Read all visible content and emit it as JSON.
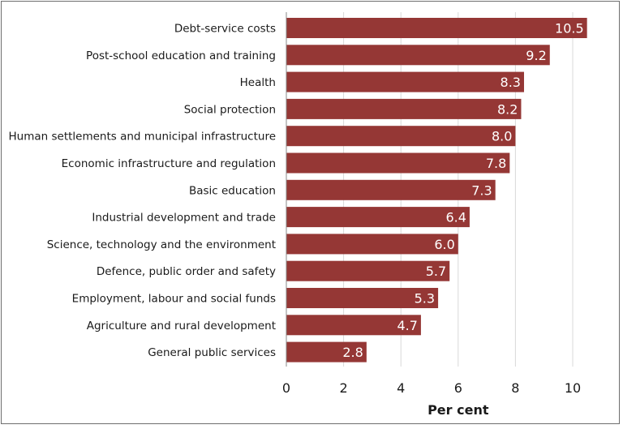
{
  "chart_data": {
    "type": "bar",
    "orientation": "horizontal",
    "title": "",
    "xlabel": "Per cent",
    "ylabel": "",
    "xlim": [
      0,
      11
    ],
    "xticks": [
      0,
      2,
      4,
      6,
      8,
      10
    ],
    "grid": "vertical",
    "bar_color": "#953735",
    "categories": [
      "Debt-service costs",
      "Post-school education and training",
      "Health",
      "Social protection",
      "Human settlements and municipal infrastructure",
      "Economic infrastructure and regulation",
      "Basic education",
      "Industrial development and trade",
      "Science, technology and the environment",
      "Defence, public order and safety",
      "Employment, labour and social funds",
      "Agriculture and rural development",
      "General public services"
    ],
    "values": [
      10.5,
      9.2,
      8.3,
      8.2,
      8.0,
      7.8,
      7.3,
      6.4,
      6.0,
      5.7,
      5.3,
      4.7,
      2.8
    ],
    "value_labels": [
      "10.5",
      "9.2",
      "8.3",
      "8.2",
      "8.0",
      "7.8",
      "7.3",
      "6.4",
      "6.0",
      "5.7",
      "5.3",
      "4.7",
      "2.8"
    ]
  }
}
